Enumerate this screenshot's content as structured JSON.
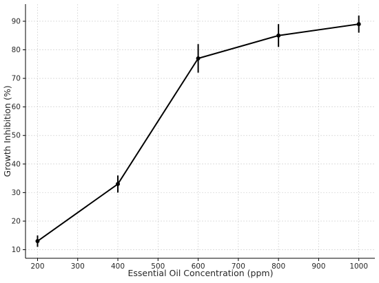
{
  "chart_data": {
    "type": "line",
    "title": "",
    "xlabel": "Essential Oil Concentration (ppm)",
    "ylabel": "Growth Inhibition (%)",
    "xlim": [
      170,
      1040
    ],
    "ylim": [
      7,
      96
    ],
    "xticks": [
      200,
      300,
      400,
      500,
      600,
      700,
      800,
      900,
      1000
    ],
    "yticks": [
      10,
      20,
      30,
      40,
      50,
      60,
      70,
      80,
      90
    ],
    "grid": true,
    "legend": "none",
    "series": [
      {
        "x": [
          200,
          400,
          600,
          800,
          1000
        ],
        "y": [
          13,
          33,
          77,
          85,
          89
        ],
        "error": [
          2,
          3,
          5,
          4,
          3
        ],
        "color": "#000000",
        "marker": "circle"
      }
    ]
  }
}
